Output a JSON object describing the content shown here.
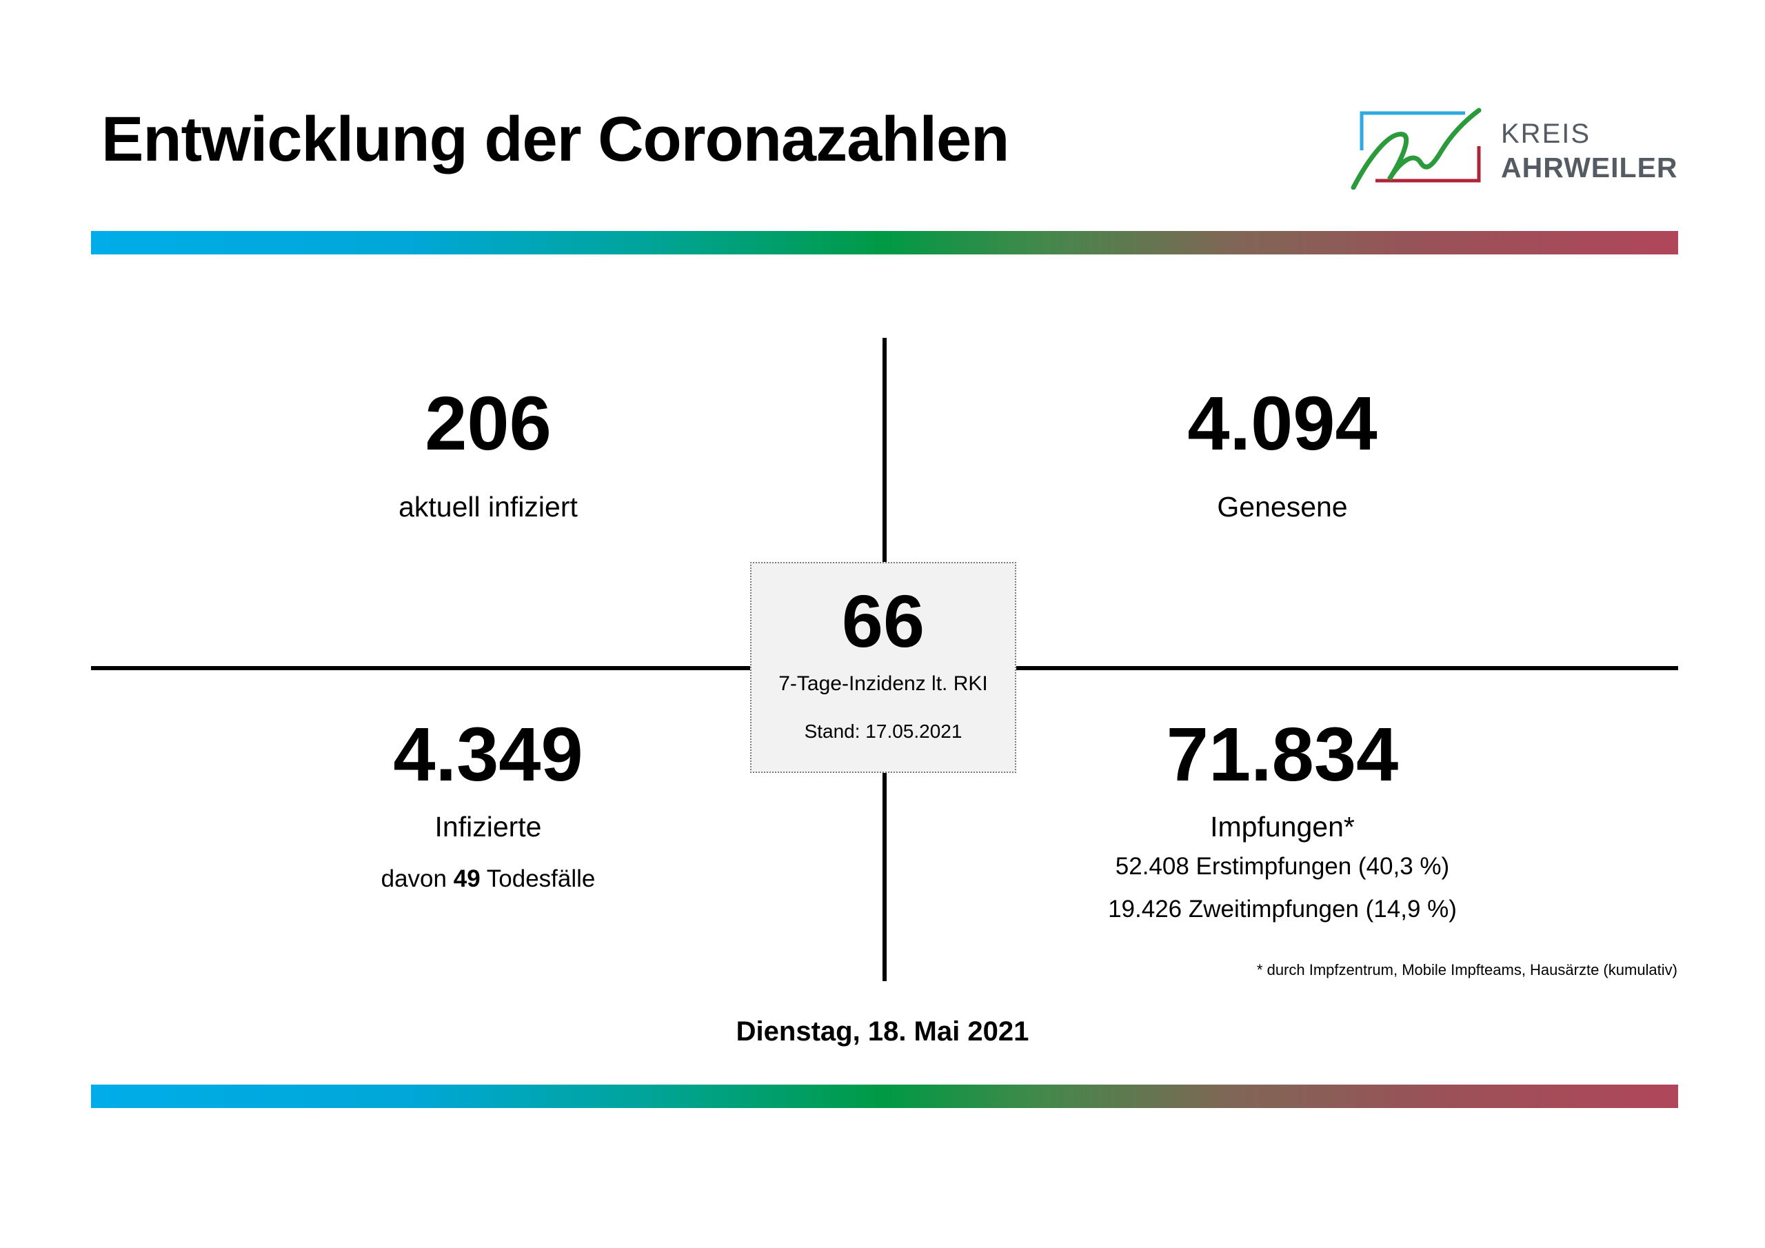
{
  "header": {
    "title": "Entwicklung der Coronazahlen",
    "logo": {
      "line1": "KREIS",
      "line2": "AHRWEILER",
      "colors": {
        "blue": "#2fa9df",
        "green": "#2a9a3a",
        "red": "#b0243a",
        "text": "#555b63"
      }
    }
  },
  "stats": {
    "current_infected": {
      "value": "206",
      "label": "aktuell infiziert"
    },
    "recovered": {
      "value": "4.094",
      "label": "Genesene"
    },
    "incidence": {
      "value": "66",
      "label": "7-Tage-Inzidenz lt. RKI",
      "stand": "Stand: 17.05.2021"
    },
    "infected_total": {
      "value": "4.349",
      "label": "Infizierte",
      "deaths_prefix": "davon",
      "deaths_value": "49",
      "deaths_suffix": "Todesfälle"
    },
    "vaccinations": {
      "value": "71.834",
      "label": "Impfungen*",
      "first": "52.408 Erstimpfungen (40,3 %)",
      "second": "19.426 Zweitimpfungen (14,9 %)",
      "footnote": "* durch Impfzentrum, Mobile Impfteams, Hausärzte (kumulativ)"
    }
  },
  "footer": {
    "date": "Dienstag, 18. Mai 2021"
  },
  "colors": {
    "gradient": [
      "#00ade8",
      "#009a44",
      "#806656",
      "#b0465a"
    ],
    "box_background": "#f2f2f2"
  }
}
